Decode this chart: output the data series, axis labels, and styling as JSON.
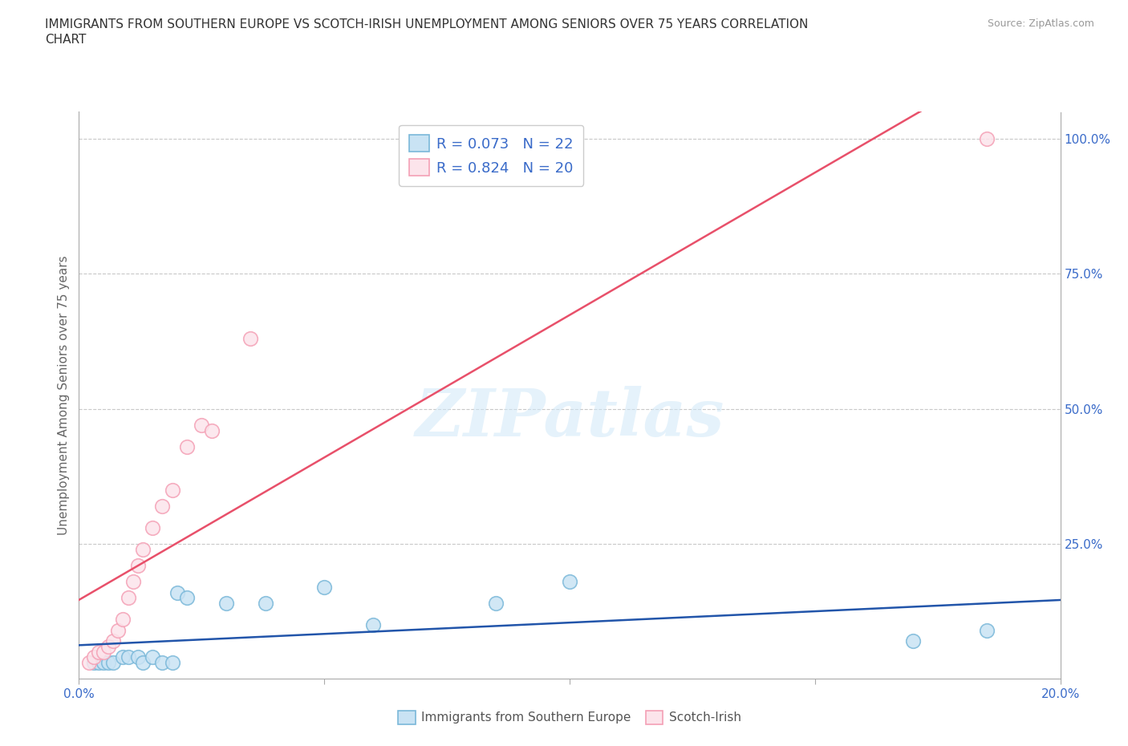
{
  "title_line1": "IMMIGRANTS FROM SOUTHERN EUROPE VS SCOTCH-IRISH UNEMPLOYMENT AMONG SENIORS OVER 75 YEARS CORRELATION",
  "title_line2": "CHART",
  "source_text": "Source: ZipAtlas.com",
  "ylabel": "Unemployment Among Seniors over 75 years",
  "xlim": [
    0.0,
    0.2
  ],
  "ylim": [
    0.0,
    1.05
  ],
  "xticks": [
    0.0,
    0.05,
    0.1,
    0.15,
    0.2
  ],
  "yticks_right": [
    0.0,
    0.25,
    0.5,
    0.75,
    1.0
  ],
  "blue_color": "#7ab8d9",
  "blue_fill": "#c9e3f4",
  "pink_color": "#f4a0b5",
  "pink_fill": "#fce4eb",
  "blue_line_color": "#2255aa",
  "pink_line_color": "#e8506a",
  "label_color": "#3a6bc9",
  "r_blue": 0.073,
  "n_blue": 22,
  "r_pink": 0.824,
  "n_pink": 20,
  "watermark_text": "ZIPatlas",
  "blue_scatter": [
    [
      0.003,
      0.03
    ],
    [
      0.004,
      0.03
    ],
    [
      0.005,
      0.03
    ],
    [
      0.006,
      0.03
    ],
    [
      0.007,
      0.03
    ],
    [
      0.009,
      0.04
    ],
    [
      0.01,
      0.04
    ],
    [
      0.012,
      0.04
    ],
    [
      0.013,
      0.03
    ],
    [
      0.015,
      0.04
    ],
    [
      0.017,
      0.03
    ],
    [
      0.019,
      0.03
    ],
    [
      0.02,
      0.16
    ],
    [
      0.022,
      0.15
    ],
    [
      0.03,
      0.14
    ],
    [
      0.038,
      0.14
    ],
    [
      0.05,
      0.17
    ],
    [
      0.06,
      0.1
    ],
    [
      0.085,
      0.14
    ],
    [
      0.1,
      0.18
    ],
    [
      0.17,
      0.07
    ],
    [
      0.185,
      0.09
    ]
  ],
  "pink_scatter": [
    [
      0.002,
      0.03
    ],
    [
      0.003,
      0.04
    ],
    [
      0.004,
      0.05
    ],
    [
      0.005,
      0.05
    ],
    [
      0.006,
      0.06
    ],
    [
      0.007,
      0.07
    ],
    [
      0.008,
      0.09
    ],
    [
      0.009,
      0.11
    ],
    [
      0.01,
      0.15
    ],
    [
      0.011,
      0.18
    ],
    [
      0.012,
      0.21
    ],
    [
      0.013,
      0.24
    ],
    [
      0.015,
      0.28
    ],
    [
      0.017,
      0.32
    ],
    [
      0.019,
      0.35
    ],
    [
      0.022,
      0.43
    ],
    [
      0.025,
      0.47
    ],
    [
      0.027,
      0.46
    ],
    [
      0.035,
      0.63
    ],
    [
      0.185,
      1.0
    ]
  ],
  "blue_scatter_size": 160,
  "pink_scatter_size": 160,
  "grid_color": "#c8c8c8",
  "bg_color": "#ffffff",
  "series1_label": "Immigrants from Southern Europe",
  "series2_label": "Scotch-Irish"
}
